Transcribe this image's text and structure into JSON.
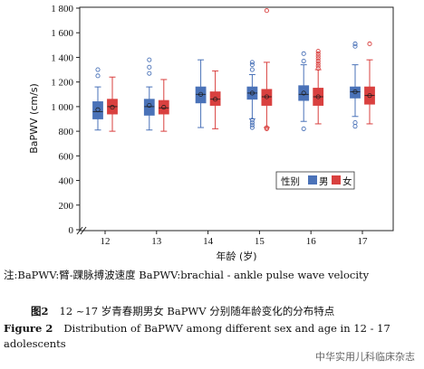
{
  "chart_data": {
    "type": "box",
    "xlabel": "年龄 (岁)",
    "ylabel": "BaPWV (cm/s)",
    "ylim": [
      0,
      1800
    ],
    "yticks": [
      0,
      200,
      400,
      600,
      800,
      1000,
      1200,
      1400,
      1600,
      1800
    ],
    "ytick_labels": [
      "0",
      "200",
      "400",
      "600",
      "800",
      "1 000",
      "1 200",
      "1 400",
      "1 600",
      "1 800"
    ],
    "categories": [
      "12",
      "13",
      "14",
      "15",
      "16",
      "17"
    ],
    "axis_break": true,
    "grid": false,
    "legend": {
      "title": "性别",
      "position": "center-right",
      "entries": [
        "男",
        "女"
      ]
    },
    "series": [
      {
        "name": "男",
        "color": "#4a72b8",
        "boxes": [
          {
            "min": 810,
            "q1": 900,
            "median": 960,
            "q3": 1040,
            "max": 1160,
            "mean": 975,
            "outliers": [
              1250,
              1300
            ]
          },
          {
            "min": 810,
            "q1": 930,
            "median": 1000,
            "q3": 1060,
            "max": 1160,
            "mean": 1010,
            "outliers": [
              1270,
              1320,
              1380
            ]
          },
          {
            "min": 830,
            "q1": 1030,
            "median": 1100,
            "q3": 1160,
            "max": 1380,
            "mean": 1100,
            "outliers": []
          },
          {
            "min": 900,
            "q1": 1060,
            "median": 1110,
            "q3": 1160,
            "max": 1260,
            "mean": 1110,
            "outliers": [
              830,
              850,
              870,
              890,
              1300,
              1340,
              1360
            ]
          },
          {
            "min": 880,
            "q1": 1050,
            "median": 1100,
            "q3": 1170,
            "max": 1340,
            "mean": 1110,
            "outliers": [
              820,
              1370,
              1430
            ]
          },
          {
            "min": 920,
            "q1": 1070,
            "median": 1120,
            "q3": 1160,
            "max": 1340,
            "mean": 1120,
            "outliers": [
              840,
              870,
              1490,
              1510
            ]
          }
        ]
      },
      {
        "name": "女",
        "color": "#d9403f",
        "boxes": [
          {
            "min": 800,
            "q1": 940,
            "median": 1000,
            "q3": 1060,
            "max": 1240,
            "mean": 995,
            "outliers": []
          },
          {
            "min": 800,
            "q1": 940,
            "median": 990,
            "q3": 1050,
            "max": 1220,
            "mean": 995,
            "outliers": []
          },
          {
            "min": 820,
            "q1": 1010,
            "median": 1060,
            "q3": 1120,
            "max": 1290,
            "mean": 1060,
            "outliers": []
          },
          {
            "min": 830,
            "q1": 1010,
            "median": 1080,
            "q3": 1140,
            "max": 1360,
            "mean": 1080,
            "outliers": [
              820,
              830,
              1780
            ]
          },
          {
            "min": 860,
            "q1": 1010,
            "median": 1080,
            "q3": 1150,
            "max": 1300,
            "mean": 1080,
            "outliers": [
              1310,
              1330,
              1350,
              1370,
              1390,
              1410,
              1430,
              1450
            ]
          },
          {
            "min": 860,
            "q1": 1020,
            "median": 1090,
            "q3": 1160,
            "max": 1380,
            "mean": 1090,
            "outliers": [
              1510
            ]
          }
        ]
      }
    ]
  },
  "captions": {
    "note": "注:BaPWV:臂-踝脉搏波速度    BaPWV:brachial - ankle pulse wave velocity",
    "zh_label": "图2",
    "zh_text": "12 ~17 岁青春期男女 BaPWV 分别随年龄变化的分布特点",
    "en_label": "Figure 2",
    "en_text": "Distribution of BaPWV among different sex and age in 12 - 17 adolescents"
  },
  "watermark": "中华实用儿科临床杂志"
}
